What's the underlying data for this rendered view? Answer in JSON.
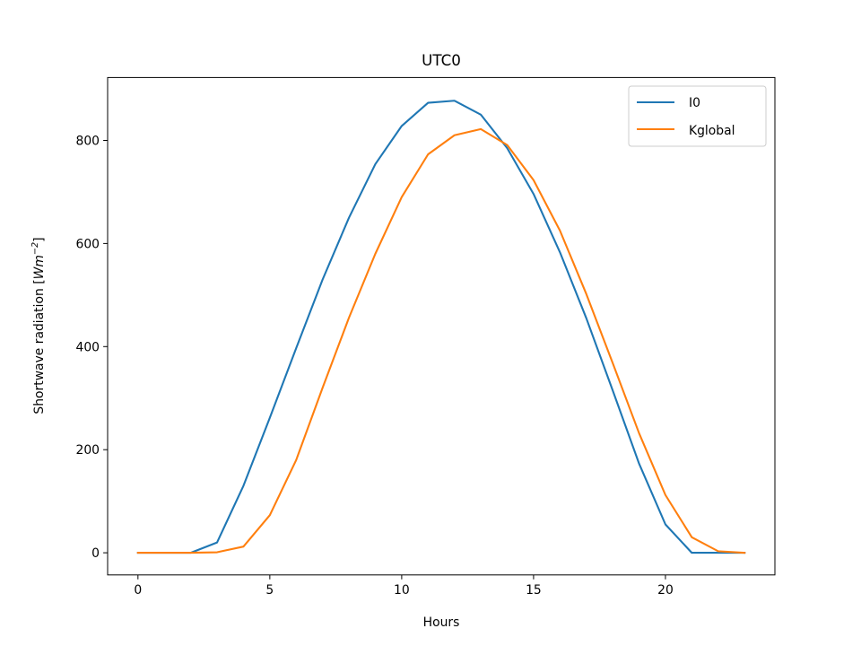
{
  "chart_data": {
    "type": "line",
    "title": "UTC0",
    "xlabel": "Hours",
    "ylabel_text": "Shortwave radiation [",
    "ylabel_math_base": "Wm",
    "ylabel_math_exp": "−2",
    "ylabel_close": "]",
    "xlim": [
      -1.15,
      24.15
    ],
    "ylim": [
      -43,
      922
    ],
    "xticks": [
      0,
      5,
      10,
      15,
      20
    ],
    "xtick_labels": [
      "0",
      "5",
      "10",
      "15",
      "20"
    ],
    "yticks": [
      0,
      200,
      400,
      600,
      800
    ],
    "ytick_labels": [
      "0",
      "200",
      "400",
      "600",
      "800"
    ],
    "grid": false,
    "legend_position": "upper right",
    "x": [
      0,
      1,
      2,
      3,
      4,
      5,
      6,
      7,
      8,
      9,
      10,
      11,
      12,
      13,
      14,
      15,
      16,
      17,
      18,
      19,
      20,
      21,
      22,
      23
    ],
    "series": [
      {
        "name": "I0",
        "color": "#1f77b4",
        "values": [
          0,
          0,
          0,
          20,
          130,
          262,
          397,
          530,
          650,
          754,
          828,
          873,
          877,
          850,
          785,
          696,
          583,
          455,
          315,
          173,
          55,
          0,
          0,
          0
        ]
      },
      {
        "name": "Kglobal",
        "color": "#ff7f0e",
        "values": [
          0,
          0,
          0,
          1,
          12,
          73,
          180,
          320,
          456,
          580,
          690,
          773,
          810,
          822,
          791,
          723,
          625,
          502,
          368,
          232,
          112,
          30,
          3,
          0
        ]
      }
    ]
  }
}
